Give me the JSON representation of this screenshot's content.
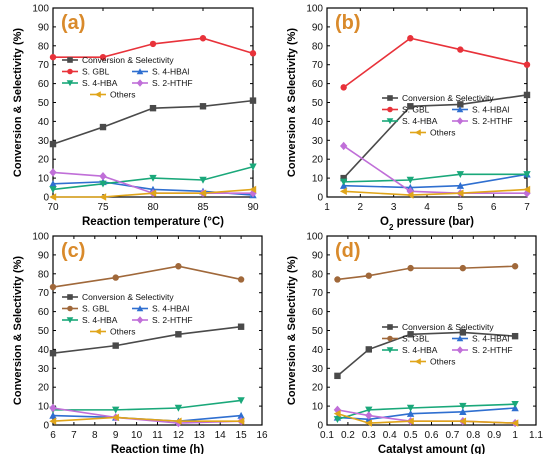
{
  "colors": {
    "conversion": "#4a4a4a",
    "gbl": "#e8323a",
    "hbal": "#2f6fd0",
    "hba": "#1aa87a",
    "hthf": "#c06fd8",
    "others": "#e0a51a",
    "gbl_c": "#a0683a",
    "panel_label": "#d98a2b"
  },
  "chart_data": [
    {
      "type": "line",
      "panel_label": "(a)",
      "xlabel": "Reaction temperature (°C)",
      "ylabel": "Conversion & Selectivity (%)",
      "xlim": [
        70,
        90
      ],
      "ylim": [
        0,
        100
      ],
      "xticks": [
        70,
        75,
        80,
        85,
        90
      ],
      "yticks": [
        0,
        10,
        20,
        30,
        40,
        50,
        60,
        70,
        80,
        90,
        100
      ],
      "grid": false,
      "legend_placement": "center-left",
      "x": [
        70,
        75,
        80,
        85,
        90
      ],
      "series": [
        {
          "name": "Conversion  & Selectivity",
          "color": "conversion",
          "marker": "square",
          "values": [
            28,
            37,
            47,
            48,
            51
          ]
        },
        {
          "name": "S. GBL",
          "color": "gbl",
          "marker": "circle",
          "values": [
            74,
            74,
            81,
            84,
            76
          ]
        },
        {
          "name": "S. 4-HBAl",
          "color": "hbal",
          "marker": "triangle-up",
          "values": [
            7,
            8,
            4,
            3,
            1
          ]
        },
        {
          "name": "S. 4-HBA",
          "color": "hba",
          "marker": "triangle-down",
          "values": [
            4,
            7,
            10,
            9,
            16
          ]
        },
        {
          "name": "S. 2-HTHF",
          "color": "hthf",
          "marker": "diamond",
          "values": [
            13,
            11,
            2,
            2,
            2
          ]
        },
        {
          "name": "Others",
          "color": "others",
          "marker": "triangle-left",
          "values": [
            0,
            0,
            2,
            2,
            4
          ]
        }
      ]
    },
    {
      "type": "line",
      "panel_label": "(b)",
      "xlabel": "O2 pressure (bar)",
      "ylabel": "Conversion & Selectivity (%)",
      "xlim": [
        1,
        7
      ],
      "ylim": [
        0,
        100
      ],
      "xticks": [
        1,
        2,
        3,
        4,
        5,
        6,
        7
      ],
      "yticks": [
        0,
        10,
        20,
        30,
        40,
        50,
        60,
        70,
        80,
        90,
        100
      ],
      "grid": false,
      "legend_placement": "center-right",
      "x": [
        1.5,
        3.5,
        5,
        7
      ],
      "series": [
        {
          "name": "Conversion  & Selectivity",
          "color": "conversion",
          "marker": "square",
          "values": [
            10,
            48,
            49,
            54
          ]
        },
        {
          "name": "S. GBL",
          "color": "gbl",
          "marker": "circle",
          "values": [
            58,
            84,
            78,
            70
          ]
        },
        {
          "name": "S. 4-HBAl",
          "color": "hbal",
          "marker": "triangle-up",
          "values": [
            6,
            5,
            6,
            12
          ]
        },
        {
          "name": "S. 4-HBA",
          "color": "hba",
          "marker": "triangle-down",
          "values": [
            8,
            9,
            12,
            12
          ]
        },
        {
          "name": "S. 2-HTHF",
          "color": "hthf",
          "marker": "diamond",
          "values": [
            27,
            3,
            2,
            2
          ]
        },
        {
          "name": "Others",
          "color": "others",
          "marker": "triangle-left",
          "values": [
            3,
            1,
            2,
            4
          ]
        }
      ]
    },
    {
      "type": "line",
      "panel_label": "(c)",
      "xlabel": "Reaction time (h)",
      "ylabel": "Conversion & Selectivity (%)",
      "xlim": [
        6,
        16
      ],
      "ylim": [
        0,
        100
      ],
      "xticks": [
        6,
        7,
        8,
        9,
        10,
        11,
        12,
        13,
        14,
        15,
        16
      ],
      "yticks": [
        0,
        10,
        20,
        30,
        40,
        50,
        60,
        70,
        80,
        90,
        100
      ],
      "grid": false,
      "legend_placement": "center-left",
      "x": [
        6,
        9,
        12,
        15
      ],
      "series": [
        {
          "name": "Conversion  & Selectivity",
          "color": "conversion",
          "marker": "square",
          "values": [
            38,
            42,
            48,
            52
          ]
        },
        {
          "name": "S. GBL",
          "color": "gbl_c",
          "marker": "circle",
          "values": [
            73,
            78,
            84,
            77
          ]
        },
        {
          "name": "S. 4-HBAl",
          "color": "hbal",
          "marker": "triangle-up",
          "values": [
            5,
            4,
            2,
            5
          ]
        },
        {
          "name": "S. 4-HBA",
          "color": "hba",
          "marker": "triangle-down",
          "values": [
            8,
            8,
            9,
            13
          ]
        },
        {
          "name": "S. 2-HTHF",
          "color": "hthf",
          "marker": "diamond",
          "values": [
            9,
            4,
            1,
            2
          ]
        },
        {
          "name": "Others",
          "color": "others",
          "marker": "triangle-left",
          "values": [
            2,
            4,
            2,
            2
          ]
        }
      ]
    },
    {
      "type": "line",
      "panel_label": "(d)",
      "xlabel": "Catalyst amount (g)",
      "ylabel": "Conversion & Selectivity (%)",
      "xlim": [
        0.1,
        1.1
      ],
      "ylim": [
        0,
        100
      ],
      "xticks": [
        0.1,
        0.2,
        0.3,
        0.4,
        0.5,
        0.6,
        0.7,
        0.8,
        0.9,
        1.0,
        1.1
      ],
      "yticks": [
        0,
        10,
        20,
        30,
        40,
        50,
        60,
        70,
        80,
        90,
        100
      ],
      "grid": false,
      "legend_placement": "center-right",
      "x": [
        0.15,
        0.3,
        0.5,
        0.75,
        1.0
      ],
      "series": [
        {
          "name": "Conversion  & Selectivity",
          "color": "conversion",
          "marker": "square",
          "values": [
            26,
            40,
            48,
            49,
            47
          ]
        },
        {
          "name": "S. GBL",
          "color": "gbl_c",
          "marker": "circle",
          "values": [
            77,
            79,
            83,
            83,
            84
          ]
        },
        {
          "name": "S. 4-HBAl",
          "color": "hbal",
          "marker": "triangle-up",
          "values": [
            4,
            3,
            6,
            7,
            9
          ]
        },
        {
          "name": "S. 4-HBA",
          "color": "hba",
          "marker": "triangle-down",
          "values": [
            3,
            8,
            9,
            10,
            11
          ]
        },
        {
          "name": "S. 2-HTHF",
          "color": "hthf",
          "marker": "diamond",
          "values": [
            8,
            5,
            2,
            2,
            1
          ]
        },
        {
          "name": "Others",
          "color": "others",
          "marker": "triangle-left",
          "values": [
            6,
            1,
            2,
            2,
            1
          ]
        }
      ]
    }
  ]
}
